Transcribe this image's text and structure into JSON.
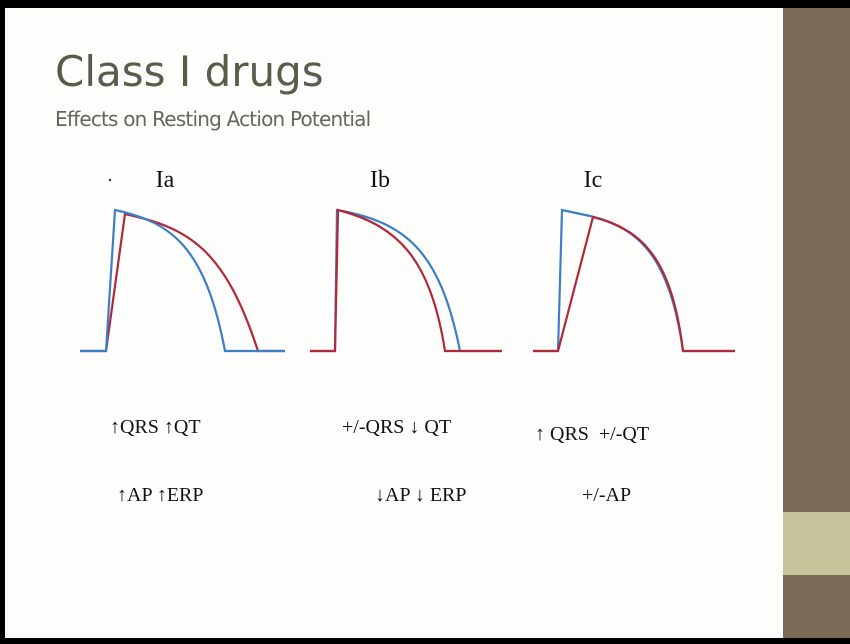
{
  "slide": {
    "title": "Class I drugs",
    "subtitle": "Effects on Resting Action Potential",
    "panels": [
      {
        "label": "Ia",
        "effects": [
          "↑QRS ↑QT",
          "↑AP ↑ERP"
        ]
      },
      {
        "label": "Ib",
        "effects": [
          "+/-QRS ↓ QT",
          "↓AP ↓ ERP"
        ]
      },
      {
        "label": "Ic",
        "effects": [
          "↑ QRS  +/-QT",
          "+/-AP"
        ]
      }
    ]
  }
}
